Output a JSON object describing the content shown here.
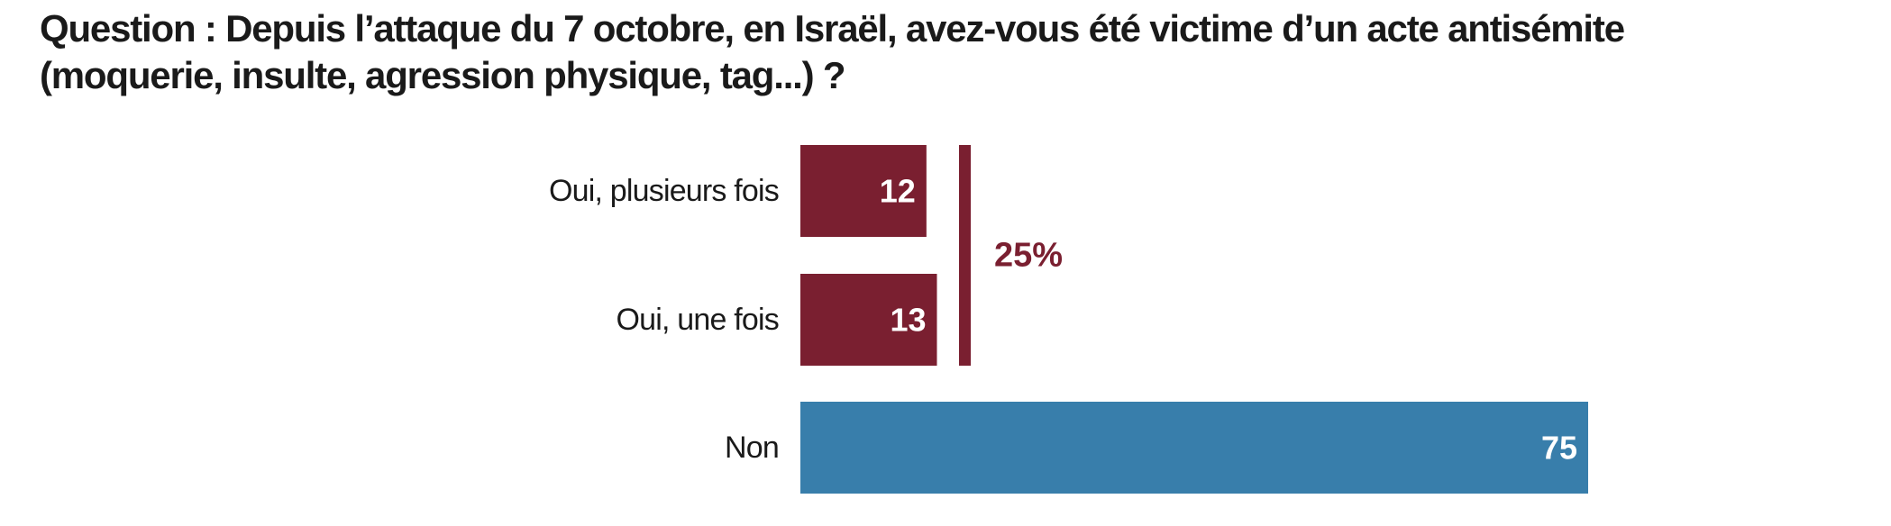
{
  "question": {
    "label": "Question : Depuis l’attaque du 7 octobre, en Israël, avez-vous été victime d’un acte antisémite",
    "label_line2": "(moquerie, insulte, agression physique, tag...) ?"
  },
  "colors": {
    "oui": "#7a1f30",
    "non": "#387eab",
    "text": "#1a1a1a",
    "bar_label": "#ffffff"
  },
  "chart_data": {
    "type": "bar",
    "orientation": "horizontal",
    "title": "Question : Depuis l’attaque du 7 octobre, en Israël, avez-vous été victime d’un acte antisémite (moquerie, insulte, agression physique, tag...) ?",
    "categories": [
      "Oui, plusieurs fois",
      "Oui, une fois",
      "Non"
    ],
    "values": [
      12,
      13,
      75
    ],
    "unit": "%",
    "xlim": [
      0,
      75
    ],
    "grid": false,
    "legend": "none",
    "group_annotation": {
      "categories": [
        "Oui, plusieurs fois",
        "Oui, une fois"
      ],
      "label": "25%"
    }
  }
}
